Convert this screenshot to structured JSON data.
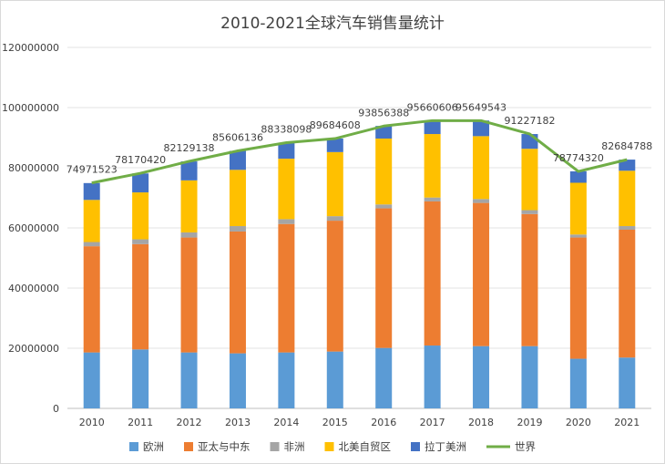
{
  "chart_data": {
    "type": "bar",
    "stacked": true,
    "title": "2010-2021全球汽车销售量统计",
    "categories": [
      "2010",
      "2011",
      "2012",
      "2013",
      "2014",
      "2015",
      "2016",
      "2017",
      "2018",
      "2019",
      "2020",
      "2021"
    ],
    "ylim": [
      0,
      120000000
    ],
    "yticks": [
      "0",
      "20000000",
      "40000000",
      "60000000",
      "80000000",
      "100000000",
      "120000000"
    ],
    "ytick_values": [
      0,
      20000000,
      40000000,
      60000000,
      80000000,
      100000000,
      120000000
    ],
    "grid": true,
    "legend_position": "bottom",
    "series": [
      {
        "name": "欧洲",
        "color": "#5b9bd5",
        "values": [
          18600000,
          19600000,
          18600000,
          18300000,
          18600000,
          18900000,
          20100000,
          20900000,
          20700000,
          20700000,
          16500000,
          16900000
        ]
      },
      {
        "name": "亚太与中东",
        "color": "#ed7d31",
        "values": [
          35300000,
          35000000,
          38200000,
          40500000,
          42700000,
          43500000,
          46400000,
          47900000,
          47600000,
          43900000,
          40300000,
          42500000
        ]
      },
      {
        "name": "非洲",
        "color": "#a5a5a5",
        "values": [
          1400000,
          1600000,
          1700000,
          1800000,
          1600000,
          1500000,
          1300000,
          1300000,
          1300000,
          1300000,
          1000000,
          1200000
        ]
      },
      {
        "name": "北美自贸区",
        "color": "#ffc000",
        "values": [
          14000000,
          15600000,
          17300000,
          18700000,
          20100000,
          21300000,
          21900000,
          21100000,
          20900000,
          20400000,
          17200000,
          18400000
        ]
      },
      {
        "name": "拉丁美洲",
        "color": "#4472c4",
        "values": [
          5600000,
          6300000,
          6300000,
          6300000,
          5300000,
          4500000,
          4200000,
          4500000,
          5200000,
          4900000,
          3800000,
          3700000
        ]
      }
    ],
    "line": {
      "name": "世界",
      "color": "#70ad47",
      "values": [
        74971523,
        78170420,
        82129138,
        85606136,
        88338098,
        89684608,
        93856388,
        95660606,
        95649543,
        91227182,
        78774320,
        82684788
      ],
      "labels": [
        "74971523",
        "78170420",
        "82129138",
        "85606136",
        "88338098",
        "89684608",
        "93856388",
        "95660606",
        "95649543",
        "91227182",
        "78774320",
        "82684788"
      ]
    }
  }
}
